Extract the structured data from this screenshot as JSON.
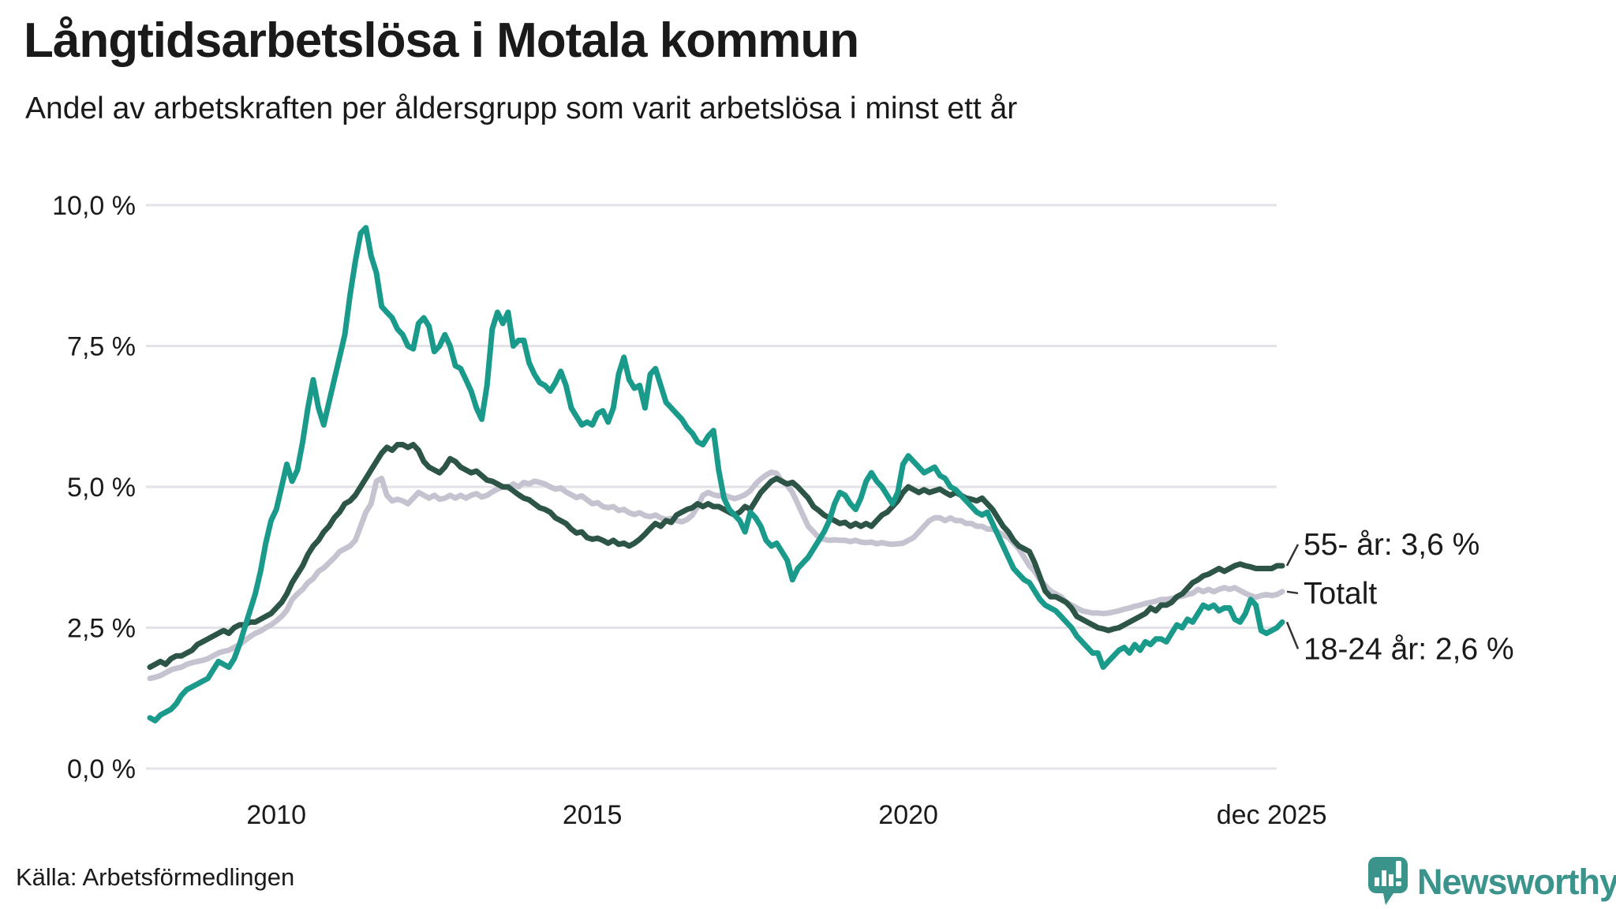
{
  "header": {
    "title": "Långtidsarbetslösa i Motala kommun",
    "subtitle": "Andel av arbetskraften per åldersgrupp som varit arbetslösa i minst ett år"
  },
  "source": {
    "label": "Källa: Arbetsförmedlingen"
  },
  "logo": {
    "text": "Newsworthy",
    "color": "#3a948c",
    "icon": "newsworthy-speech-bubble-chart-icon"
  },
  "colors": {
    "teal_series": "#1a9a8a",
    "dark_green_series": "#2d5547",
    "gray_series": "#c5c3d0",
    "gridline": "#e3e3e7",
    "text": "#1a1a1a",
    "connector": "#333333",
    "background": "#ffffff"
  },
  "chart_data": {
    "type": "line",
    "title": "Långtidsarbetslösa i Motala kommun",
    "subtitle": "Andel av arbetskraften per åldersgrupp som varit arbetslösa i minst ett år",
    "x_start": "2008-01",
    "x_end": "2025-12",
    "points_per_year": 12,
    "ylim": [
      0,
      10
    ],
    "grid": true,
    "legend_position": "line-end-labels-right",
    "yticks": [
      {
        "value": 0,
        "label": "0,0 %"
      },
      {
        "value": 2.5,
        "label": "2,5 %"
      },
      {
        "value": 5,
        "label": "5,0 %"
      },
      {
        "value": 7.5,
        "label": "7,5 %"
      },
      {
        "value": 10,
        "label": "10,0 %"
      }
    ],
    "xticks": [
      {
        "label": "2010",
        "month_index": 24
      },
      {
        "label": "2015",
        "month_index": 84
      },
      {
        "label": "2020",
        "month_index": 144
      },
      {
        "label": "dec 2025",
        "month_index": 213
      }
    ],
    "series": [
      {
        "name": "Totalt",
        "end_label": "Totalt",
        "end_value": 3.1,
        "color": "#c5c3d0",
        "values": [
          1.6,
          1.62,
          1.65,
          1.7,
          1.75,
          1.78,
          1.8,
          1.85,
          1.88,
          1.9,
          1.92,
          1.95,
          2.0,
          2.05,
          2.08,
          2.1,
          2.15,
          2.2,
          2.27,
          2.34,
          2.4,
          2.44,
          2.5,
          2.55,
          2.62,
          2.7,
          2.81,
          3.0,
          3.1,
          3.18,
          3.3,
          3.37,
          3.5,
          3.56,
          3.65,
          3.74,
          3.85,
          3.9,
          3.95,
          4.05,
          4.3,
          4.55,
          4.7,
          5.1,
          5.15,
          4.85,
          4.75,
          4.78,
          4.75,
          4.7,
          4.8,
          4.9,
          4.85,
          4.8,
          4.85,
          4.78,
          4.8,
          4.85,
          4.8,
          4.85,
          4.8,
          4.85,
          4.88,
          4.82,
          4.85,
          4.91,
          4.96,
          5.0,
          4.98,
          5.05,
          5.0,
          5.08,
          5.05,
          5.1,
          5.08,
          5.05,
          5.0,
          4.96,
          4.98,
          4.91,
          4.86,
          4.81,
          4.84,
          4.77,
          4.7,
          4.72,
          4.65,
          4.63,
          4.65,
          4.58,
          4.6,
          4.54,
          4.51,
          4.54,
          4.49,
          4.47,
          4.5,
          4.45,
          4.42,
          4.44,
          4.4,
          4.38,
          4.42,
          4.5,
          4.65,
          4.85,
          4.9,
          4.86,
          4.84,
          4.86,
          4.82,
          4.79,
          4.82,
          4.86,
          4.93,
          5.05,
          5.14,
          5.21,
          5.26,
          5.24,
          5.1,
          5.03,
          4.9,
          4.7,
          4.5,
          4.3,
          4.2,
          4.1,
          4.07,
          4.05,
          4.06,
          4.05,
          4.05,
          4.03,
          4.05,
          4.02,
          4.01,
          4.02,
          3.99,
          4.01,
          3.99,
          3.98,
          3.99,
          4.0,
          4.05,
          4.1,
          4.2,
          4.3,
          4.4,
          4.45,
          4.45,
          4.4,
          4.45,
          4.4,
          4.4,
          4.35,
          4.35,
          4.3,
          4.3,
          4.25,
          4.25,
          4.2,
          4.15,
          4.1,
          4.0,
          3.9,
          3.75,
          3.6,
          3.5,
          3.35,
          3.25,
          3.15,
          3.1,
          3.05,
          2.95,
          2.9,
          2.85,
          2.8,
          2.78,
          2.76,
          2.76,
          2.75,
          2.76,
          2.78,
          2.8,
          2.83,
          2.85,
          2.88,
          2.9,
          2.93,
          2.95,
          2.97,
          3.0,
          3.0,
          3.02,
          3.04,
          3.06,
          3.09,
          3.11,
          3.18,
          3.14,
          3.18,
          3.14,
          3.18,
          3.21,
          3.18,
          3.21,
          3.16,
          3.11,
          3.07,
          3.04,
          3.07,
          3.09,
          3.07,
          3.09,
          3.14
        ]
      },
      {
        "name": "55- år",
        "end_label": "55- år: 3,6 %",
        "end_value": 3.6,
        "color": "#2d5547",
        "values": [
          1.8,
          1.85,
          1.9,
          1.85,
          1.95,
          2.0,
          2.0,
          2.05,
          2.1,
          2.2,
          2.25,
          2.3,
          2.35,
          2.4,
          2.45,
          2.4,
          2.5,
          2.55,
          2.55,
          2.6,
          2.6,
          2.65,
          2.7,
          2.75,
          2.85,
          2.95,
          3.1,
          3.3,
          3.45,
          3.6,
          3.8,
          3.95,
          4.05,
          4.2,
          4.3,
          4.45,
          4.55,
          4.7,
          4.75,
          4.85,
          5.0,
          5.15,
          5.3,
          5.45,
          5.6,
          5.7,
          5.65,
          5.75,
          5.75,
          5.7,
          5.75,
          5.65,
          5.45,
          5.35,
          5.3,
          5.25,
          5.35,
          5.5,
          5.45,
          5.35,
          5.3,
          5.25,
          5.28,
          5.2,
          5.12,
          5.1,
          5.05,
          5.0,
          5.0,
          4.93,
          4.86,
          4.8,
          4.77,
          4.7,
          4.63,
          4.6,
          4.55,
          4.45,
          4.4,
          4.35,
          4.25,
          4.18,
          4.2,
          4.1,
          4.07,
          4.09,
          4.05,
          4.0,
          4.05,
          3.98,
          4.0,
          3.95,
          4.0,
          4.07,
          4.16,
          4.26,
          4.35,
          4.3,
          4.4,
          4.37,
          4.5,
          4.55,
          4.6,
          4.63,
          4.7,
          4.65,
          4.7,
          4.65,
          4.65,
          4.6,
          4.55,
          4.5,
          4.55,
          4.65,
          4.6,
          4.75,
          4.9,
          5.0,
          5.1,
          5.15,
          5.1,
          5.05,
          5.08,
          5.0,
          4.9,
          4.8,
          4.65,
          4.58,
          4.5,
          4.45,
          4.4,
          4.35,
          4.37,
          4.3,
          4.35,
          4.3,
          4.35,
          4.3,
          4.4,
          4.5,
          4.55,
          4.65,
          4.75,
          4.9,
          5.0,
          4.95,
          4.9,
          4.95,
          4.9,
          4.93,
          4.96,
          4.9,
          4.85,
          4.9,
          4.85,
          4.8,
          4.78,
          4.75,
          4.8,
          4.7,
          4.6,
          4.45,
          4.3,
          4.2,
          4.05,
          3.95,
          3.9,
          3.85,
          3.65,
          3.4,
          3.15,
          3.05,
          3.05,
          3.0,
          2.95,
          2.85,
          2.7,
          2.65,
          2.6,
          2.55,
          2.5,
          2.48,
          2.45,
          2.48,
          2.5,
          2.55,
          2.6,
          2.65,
          2.7,
          2.75,
          2.85,
          2.8,
          2.9,
          2.9,
          2.95,
          3.05,
          3.1,
          3.2,
          3.3,
          3.35,
          3.42,
          3.45,
          3.5,
          3.55,
          3.5,
          3.55,
          3.6,
          3.63,
          3.6,
          3.58,
          3.55,
          3.55,
          3.55,
          3.55,
          3.6,
          3.6
        ]
      },
      {
        "name": "18-24 år",
        "end_label": "18-24 år: 2,6 %",
        "end_value": 2.6,
        "color": "#1a9a8a",
        "values": [
          0.9,
          0.85,
          0.95,
          1.0,
          1.05,
          1.15,
          1.3,
          1.4,
          1.45,
          1.5,
          1.55,
          1.6,
          1.75,
          1.9,
          1.85,
          1.8,
          1.95,
          2.2,
          2.5,
          2.8,
          3.1,
          3.5,
          4.0,
          4.4,
          4.6,
          5.0,
          5.4,
          5.1,
          5.3,
          5.8,
          6.4,
          6.9,
          6.4,
          6.1,
          6.5,
          6.9,
          7.3,
          7.7,
          8.4,
          9.0,
          9.5,
          9.6,
          9.1,
          8.8,
          8.2,
          8.1,
          8.0,
          7.8,
          7.7,
          7.5,
          7.45,
          7.9,
          8.0,
          7.85,
          7.4,
          7.5,
          7.7,
          7.5,
          7.15,
          7.1,
          6.9,
          6.7,
          6.4,
          6.2,
          6.8,
          7.8,
          8.1,
          7.9,
          8.1,
          7.5,
          7.6,
          7.6,
          7.2,
          7.0,
          6.85,
          6.8,
          6.7,
          6.85,
          7.05,
          6.8,
          6.4,
          6.25,
          6.1,
          6.15,
          6.1,
          6.3,
          6.35,
          6.15,
          6.4,
          7.0,
          7.3,
          6.9,
          6.75,
          6.8,
          6.4,
          7.0,
          7.1,
          6.8,
          6.5,
          6.4,
          6.3,
          6.2,
          6.05,
          5.95,
          5.8,
          5.75,
          5.9,
          6.0,
          5.3,
          4.8,
          4.6,
          4.5,
          4.4,
          4.2,
          4.55,
          4.45,
          4.3,
          4.05,
          3.95,
          4.0,
          3.85,
          3.7,
          3.35,
          3.55,
          3.65,
          3.75,
          3.9,
          4.05,
          4.2,
          4.4,
          4.7,
          4.9,
          4.85,
          4.7,
          4.6,
          4.8,
          5.1,
          5.25,
          5.1,
          5.0,
          4.85,
          4.7,
          4.9,
          5.4,
          5.55,
          5.45,
          5.35,
          5.25,
          5.3,
          5.35,
          5.2,
          5.15,
          5.0,
          4.95,
          4.85,
          4.75,
          4.65,
          4.55,
          4.5,
          4.55,
          4.35,
          4.15,
          3.95,
          3.75,
          3.55,
          3.45,
          3.35,
          3.3,
          3.15,
          3.0,
          2.9,
          2.85,
          2.8,
          2.7,
          2.6,
          2.5,
          2.35,
          2.25,
          2.15,
          2.05,
          2.05,
          1.8,
          1.9,
          2.0,
          2.1,
          2.15,
          2.05,
          2.2,
          2.1,
          2.25,
          2.2,
          2.3,
          2.3,
          2.25,
          2.4,
          2.55,
          2.5,
          2.65,
          2.6,
          2.75,
          2.9,
          2.85,
          2.9,
          2.8,
          2.85,
          2.85,
          2.65,
          2.6,
          2.75,
          3.0,
          2.9,
          2.45,
          2.4,
          2.45,
          2.5,
          2.6
        ]
      }
    ]
  }
}
